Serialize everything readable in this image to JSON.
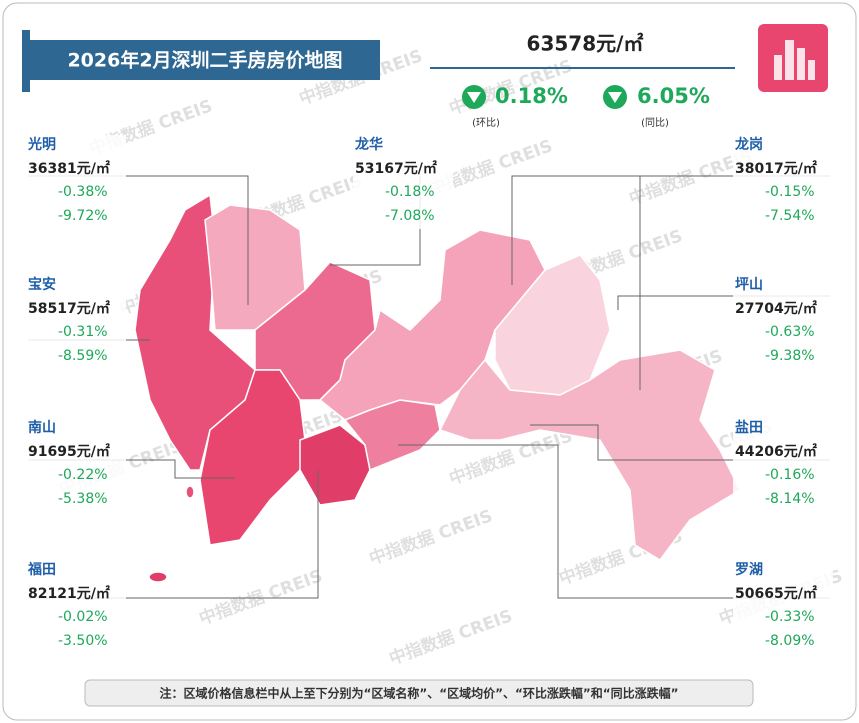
{
  "header": {
    "title": "2026年2月深圳二手房房价地图",
    "price": "63578元/㎡",
    "mom": "0.18%",
    "mom_label": "(环比)",
    "yoy": "6.05%",
    "yoy_label": "(同比)"
  },
  "districts": [
    {
      "name": "光明",
      "price": "36381元/㎡",
      "mom": "-0.38%",
      "yoy": "-9.72%"
    },
    {
      "name": "宝安",
      "price": "58517元/㎡",
      "mom": "-0.31%",
      "yoy": "-8.59%"
    },
    {
      "name": "南山",
      "price": "91695元/㎡",
      "mom": "-0.22%",
      "yoy": "-5.38%"
    },
    {
      "name": "福田",
      "price": "82121元/㎡",
      "mom": "-0.02%",
      "yoy": "-3.50%"
    },
    {
      "name": "龙华",
      "price": "53167元/㎡",
      "mom": "-0.18%",
      "yoy": "-7.08%"
    },
    {
      "name": "龙岗",
      "price": "38017元/㎡",
      "mom": "-0.15%",
      "yoy": "-7.54%"
    },
    {
      "name": "坪山",
      "price": "27704元/㎡",
      "mom": "-0.63%",
      "yoy": "-9.38%"
    },
    {
      "name": "盐田",
      "price": "44206元/㎡",
      "mom": "-0.16%",
      "yoy": "-8.14%"
    },
    {
      "name": "罗湖",
      "price": "50665元/㎡",
      "mom": "-0.33%",
      "yoy": "-8.09%"
    }
  ],
  "watermark": "中指数据 CREIS",
  "note": "注：区域价格信息栏中从上至下分别为“区域名称”、“区域均价”、“环比涨跌幅”和“同比涨跌幅”"
}
